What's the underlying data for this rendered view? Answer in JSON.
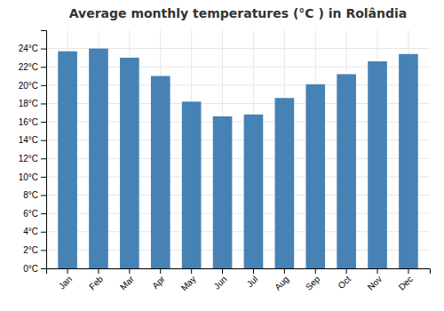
{
  "chart_data": {
    "type": "bar",
    "title": "Average monthly temperatures (°C ) in Rolândia",
    "categories": [
      "Jan",
      "Feb",
      "Mar",
      "Apr",
      "May",
      "Jun",
      "Jul",
      "Aug",
      "Sep",
      "Oct",
      "Nov",
      "Dec"
    ],
    "values": [
      23.7,
      24.0,
      23.0,
      21.0,
      18.2,
      16.6,
      16.8,
      18.6,
      20.1,
      21.2,
      22.6,
      23.4
    ],
    "ylim": [
      0,
      26
    ],
    "yticks": [
      {
        "value": 0,
        "label": "0°C"
      },
      {
        "value": 2,
        "label": "2°C"
      },
      {
        "value": 4,
        "label": "4°C"
      },
      {
        "value": 6,
        "label": "6°C"
      },
      {
        "value": 8,
        "label": "8°C"
      },
      {
        "value": 10,
        "label": "10°C"
      },
      {
        "value": 12,
        "label": "12°C"
      },
      {
        "value": 14,
        "label": "14°C"
      },
      {
        "value": 16,
        "label": "16°C"
      },
      {
        "value": 18,
        "label": "18°C"
      },
      {
        "value": 20,
        "label": "20°C"
      },
      {
        "value": 22,
        "label": "22°C"
      },
      {
        "value": 24,
        "label": "24°C"
      }
    ],
    "grid": true
  }
}
